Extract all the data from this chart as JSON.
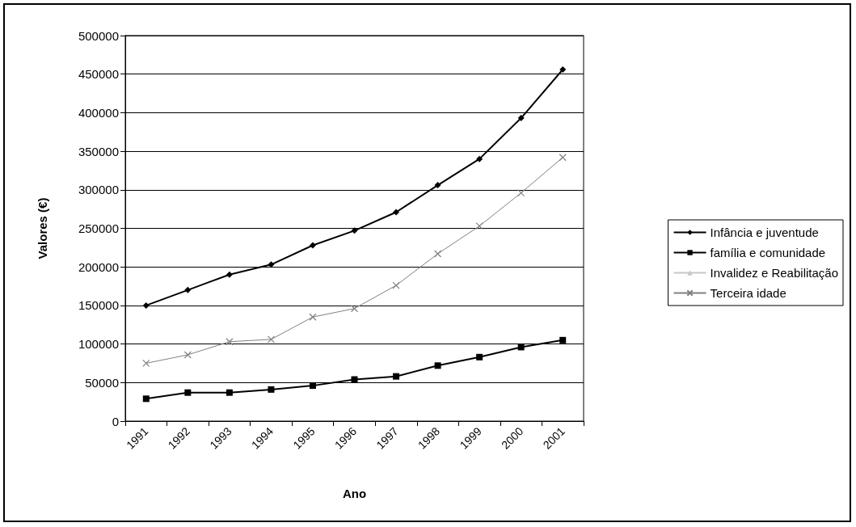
{
  "chart_data": {
    "type": "line",
    "xlabel": "Ano",
    "ylabel": "Valores (€)",
    "categories": [
      "1991",
      "1992",
      "1993",
      "1994",
      "1995",
      "1996",
      "1997",
      "1998",
      "1999",
      "2000",
      "2001"
    ],
    "series": [
      {
        "name": "Infância e juventude",
        "color": "#000000",
        "marker": "diamond",
        "values": [
          150000,
          170000,
          190000,
          203000,
          228000,
          247000,
          271000,
          306000,
          340000,
          393000,
          456000
        ]
      },
      {
        "name": "família e comunidade",
        "color": "#000000",
        "marker": "square",
        "values": [
          29000,
          37000,
          37000,
          41000,
          46000,
          54000,
          58000,
          72000,
          83000,
          96000,
          105000
        ]
      },
      {
        "name": "Invalidez e Reabilitação",
        "color": "#c8c8c8",
        "marker": "triangle",
        "values": [
          null,
          null,
          null,
          null,
          null,
          null,
          null,
          null,
          null,
          null,
          null
        ]
      },
      {
        "name": "Terceira idade",
        "color": "#808080",
        "marker": "cross",
        "values": [
          75000,
          86000,
          103000,
          106000,
          135000,
          146000,
          176000,
          217000,
          253000,
          296000,
          342000
        ]
      }
    ],
    "ylim": [
      0,
      500000
    ],
    "yticks": [
      0,
      50000,
      100000,
      150000,
      200000,
      250000,
      300000,
      350000,
      400000,
      450000,
      500000
    ],
    "grid": "y",
    "legend": "right",
    "line_style": "solid"
  }
}
